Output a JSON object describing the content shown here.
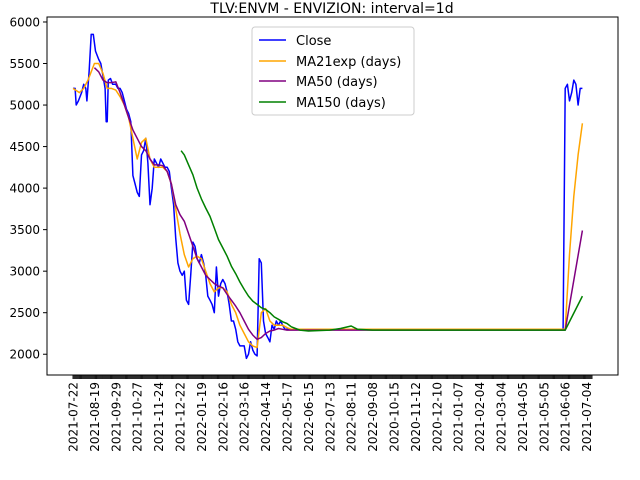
{
  "chart_data": {
    "type": "line",
    "title": "TLV:ENVM - ENVIZION: interval=1d",
    "xlabel": "",
    "ylabel": "",
    "ylim": [
      1750,
      6060
    ],
    "yticks": [
      2000,
      2500,
      3000,
      3500,
      4000,
      4500,
      5000,
      5500,
      6000
    ],
    "grid": false,
    "legend_position": "upper center",
    "x_tick_labels": [
      "2021-07-22",
      "2021-08-19",
      "2021-09-29",
      "2021-10-27",
      "2021-11-24",
      "2021-12-22",
      "2022-01-19",
      "2022-02-16",
      "2022-03-16",
      "2022-04-14",
      "2022-05-17",
      "2022-06-15",
      "2022-07-13",
      "2022-08-11",
      "2022-09-08",
      "2020-10-15",
      "2020-11-12",
      "2020-12-10",
      "2021-01-07",
      "2021-02-04",
      "2021-03-04",
      "2021-04-05",
      "2021-05-05",
      "2021-06-06",
      "2021-07-04"
    ],
    "x_tick_index": [
      0,
      20,
      40,
      60,
      80,
      100,
      120,
      140,
      160,
      180,
      200,
      220,
      240,
      260,
      280,
      300,
      320,
      340,
      360,
      380,
      400,
      420,
      440,
      460,
      480
    ],
    "x_count": 486,
    "series": [
      {
        "name": "Close",
        "color": "#0000ff",
        "points": [
          [
            0,
            5200
          ],
          [
            2,
            5200
          ],
          [
            3,
            5000
          ],
          [
            5,
            5050
          ],
          [
            8,
            5150
          ],
          [
            10,
            5250
          ],
          [
            12,
            5200
          ],
          [
            13,
            5050
          ],
          [
            15,
            5400
          ],
          [
            17,
            5850
          ],
          [
            19,
            5850
          ],
          [
            21,
            5650
          ],
          [
            24,
            5550
          ],
          [
            26,
            5500
          ],
          [
            28,
            5350
          ],
          [
            30,
            5200
          ],
          [
            31,
            4800
          ],
          [
            32,
            4800
          ],
          [
            33,
            5300
          ],
          [
            35,
            5320
          ],
          [
            37,
            5250
          ],
          [
            40,
            5250
          ],
          [
            42,
            5200
          ],
          [
            44,
            5200
          ],
          [
            46,
            5150
          ],
          [
            48,
            5050
          ],
          [
            50,
            4950
          ],
          [
            52,
            4900
          ],
          [
            54,
            4800
          ],
          [
            56,
            4150
          ],
          [
            58,
            4050
          ],
          [
            60,
            3950
          ],
          [
            62,
            3900
          ],
          [
            64,
            4400
          ],
          [
            66,
            4450
          ],
          [
            68,
            4600
          ],
          [
            70,
            4300
          ],
          [
            72,
            3800
          ],
          [
            74,
            4000
          ],
          [
            76,
            4350
          ],
          [
            78,
            4300
          ],
          [
            80,
            4250
          ],
          [
            82,
            4350
          ],
          [
            84,
            4300
          ],
          [
            86,
            4250
          ],
          [
            88,
            4250
          ],
          [
            90,
            4200
          ],
          [
            92,
            4000
          ],
          [
            94,
            3800
          ],
          [
            96,
            3400
          ],
          [
            98,
            3100
          ],
          [
            100,
            3000
          ],
          [
            102,
            2950
          ],
          [
            104,
            3000
          ],
          [
            106,
            2650
          ],
          [
            108,
            2600
          ],
          [
            110,
            2950
          ],
          [
            112,
            3350
          ],
          [
            114,
            3300
          ],
          [
            116,
            3150
          ],
          [
            118,
            3100
          ],
          [
            120,
            3200
          ],
          [
            122,
            3100
          ],
          [
            124,
            2950
          ],
          [
            126,
            2700
          ],
          [
            128,
            2650
          ],
          [
            130,
            2600
          ],
          [
            132,
            2500
          ],
          [
            134,
            3050
          ],
          [
            136,
            2700
          ],
          [
            138,
            2850
          ],
          [
            140,
            2900
          ],
          [
            142,
            2850
          ],
          [
            144,
            2750
          ],
          [
            146,
            2600
          ],
          [
            148,
            2400
          ],
          [
            150,
            2400
          ],
          [
            152,
            2300
          ],
          [
            154,
            2150
          ],
          [
            156,
            2100
          ],
          [
            158,
            2100
          ],
          [
            160,
            2100
          ],
          [
            162,
            1950
          ],
          [
            164,
            2000
          ],
          [
            166,
            2150
          ],
          [
            168,
            2050
          ],
          [
            170,
            2000
          ],
          [
            172,
            1980
          ],
          [
            174,
            3150
          ],
          [
            176,
            3100
          ],
          [
            178,
            2400
          ],
          [
            180,
            2250
          ],
          [
            182,
            2200
          ],
          [
            184,
            2150
          ],
          [
            186,
            2350
          ],
          [
            188,
            2300
          ],
          [
            190,
            2400
          ],
          [
            192,
            2350
          ],
          [
            194,
            2400
          ],
          [
            196,
            2350
          ],
          [
            198,
            2300
          ],
          [
            200,
            2300
          ],
          [
            202,
            2300
          ],
          [
            204,
            2300
          ],
          [
            210,
            2300
          ],
          [
            300,
            2300
          ],
          [
            420,
            2300
          ],
          [
            458,
            2300
          ],
          [
            460,
            5200
          ],
          [
            462,
            5250
          ],
          [
            464,
            5050
          ],
          [
            466,
            5150
          ],
          [
            468,
            5300
          ],
          [
            470,
            5250
          ],
          [
            472,
            5000
          ],
          [
            474,
            5200
          ],
          [
            476,
            5200
          ]
        ]
      },
      {
        "name": "MA21exp (days)",
        "color": "#ffa500",
        "points": [
          [
            0,
            5200
          ],
          [
            6,
            5150
          ],
          [
            10,
            5200
          ],
          [
            14,
            5300
          ],
          [
            20,
            5500
          ],
          [
            24,
            5500
          ],
          [
            28,
            5380
          ],
          [
            32,
            5200
          ],
          [
            36,
            5200
          ],
          [
            40,
            5180
          ],
          [
            44,
            5100
          ],
          [
            48,
            5000
          ],
          [
            52,
            4850
          ],
          [
            56,
            4600
          ],
          [
            60,
            4350
          ],
          [
            64,
            4550
          ],
          [
            68,
            4600
          ],
          [
            72,
            4350
          ],
          [
            76,
            4250
          ],
          [
            80,
            4250
          ],
          [
            84,
            4250
          ],
          [
            88,
            4200
          ],
          [
            92,
            4050
          ],
          [
            96,
            3750
          ],
          [
            100,
            3450
          ],
          [
            104,
            3200
          ],
          [
            108,
            3050
          ],
          [
            112,
            3150
          ],
          [
            116,
            3180
          ],
          [
            120,
            3150
          ],
          [
            124,
            3000
          ],
          [
            128,
            2850
          ],
          [
            132,
            2750
          ],
          [
            136,
            2800
          ],
          [
            140,
            2800
          ],
          [
            144,
            2750
          ],
          [
            148,
            2600
          ],
          [
            152,
            2500
          ],
          [
            156,
            2350
          ],
          [
            160,
            2250
          ],
          [
            164,
            2150
          ],
          [
            168,
            2100
          ],
          [
            172,
            2080
          ],
          [
            176,
            2500
          ],
          [
            180,
            2550
          ],
          [
            184,
            2400
          ],
          [
            188,
            2350
          ],
          [
            192,
            2350
          ],
          [
            196,
            2350
          ],
          [
            200,
            2320
          ],
          [
            204,
            2300
          ],
          [
            210,
            2300
          ],
          [
            460,
            2300
          ],
          [
            464,
            3200
          ],
          [
            468,
            3900
          ],
          [
            472,
            4400
          ],
          [
            476,
            4780
          ]
        ]
      },
      {
        "name": "MA50 (days)",
        "color": "#800080",
        "points": [
          [
            20,
            5450
          ],
          [
            24,
            5400
          ],
          [
            28,
            5300
          ],
          [
            32,
            5270
          ],
          [
            36,
            5270
          ],
          [
            40,
            5280
          ],
          [
            44,
            5150
          ],
          [
            48,
            5000
          ],
          [
            52,
            4850
          ],
          [
            56,
            4700
          ],
          [
            60,
            4600
          ],
          [
            64,
            4500
          ],
          [
            68,
            4450
          ],
          [
            72,
            4350
          ],
          [
            76,
            4280
          ],
          [
            80,
            4280
          ],
          [
            84,
            4270
          ],
          [
            88,
            4200
          ],
          [
            92,
            4050
          ],
          [
            96,
            3800
          ],
          [
            100,
            3680
          ],
          [
            104,
            3600
          ],
          [
            108,
            3450
          ],
          [
            112,
            3300
          ],
          [
            116,
            3150
          ],
          [
            120,
            3050
          ],
          [
            124,
            2950
          ],
          [
            128,
            2900
          ],
          [
            132,
            2850
          ],
          [
            136,
            2820
          ],
          [
            140,
            2800
          ],
          [
            144,
            2720
          ],
          [
            148,
            2650
          ],
          [
            152,
            2580
          ],
          [
            156,
            2500
          ],
          [
            160,
            2400
          ],
          [
            164,
            2300
          ],
          [
            168,
            2230
          ],
          [
            172,
            2180
          ],
          [
            176,
            2200
          ],
          [
            180,
            2250
          ],
          [
            184,
            2280
          ],
          [
            188,
            2290
          ],
          [
            192,
            2310
          ],
          [
            196,
            2300
          ],
          [
            200,
            2290
          ],
          [
            210,
            2290
          ],
          [
            460,
            2290
          ],
          [
            476,
            3490
          ]
        ]
      },
      {
        "name": "MA150 (days)",
        "color": "#008000",
        "points": [
          [
            101,
            4450
          ],
          [
            104,
            4400
          ],
          [
            108,
            4280
          ],
          [
            112,
            4160
          ],
          [
            116,
            4000
          ],
          [
            120,
            3870
          ],
          [
            124,
            3760
          ],
          [
            128,
            3660
          ],
          [
            132,
            3520
          ],
          [
            136,
            3380
          ],
          [
            140,
            3280
          ],
          [
            144,
            3180
          ],
          [
            148,
            3060
          ],
          [
            152,
            2970
          ],
          [
            156,
            2870
          ],
          [
            160,
            2780
          ],
          [
            164,
            2700
          ],
          [
            168,
            2640
          ],
          [
            172,
            2600
          ],
          [
            176,
            2560
          ],
          [
            180,
            2540
          ],
          [
            184,
            2500
          ],
          [
            188,
            2450
          ],
          [
            192,
            2420
          ],
          [
            196,
            2390
          ],
          [
            200,
            2370
          ],
          [
            204,
            2330
          ],
          [
            208,
            2310
          ],
          [
            212,
            2290
          ],
          [
            220,
            2280
          ],
          [
            240,
            2290
          ],
          [
            250,
            2310
          ],
          [
            260,
            2340
          ],
          [
            266,
            2300
          ],
          [
            280,
            2290
          ],
          [
            460,
            2290
          ],
          [
            476,
            2700
          ]
        ]
      }
    ]
  }
}
